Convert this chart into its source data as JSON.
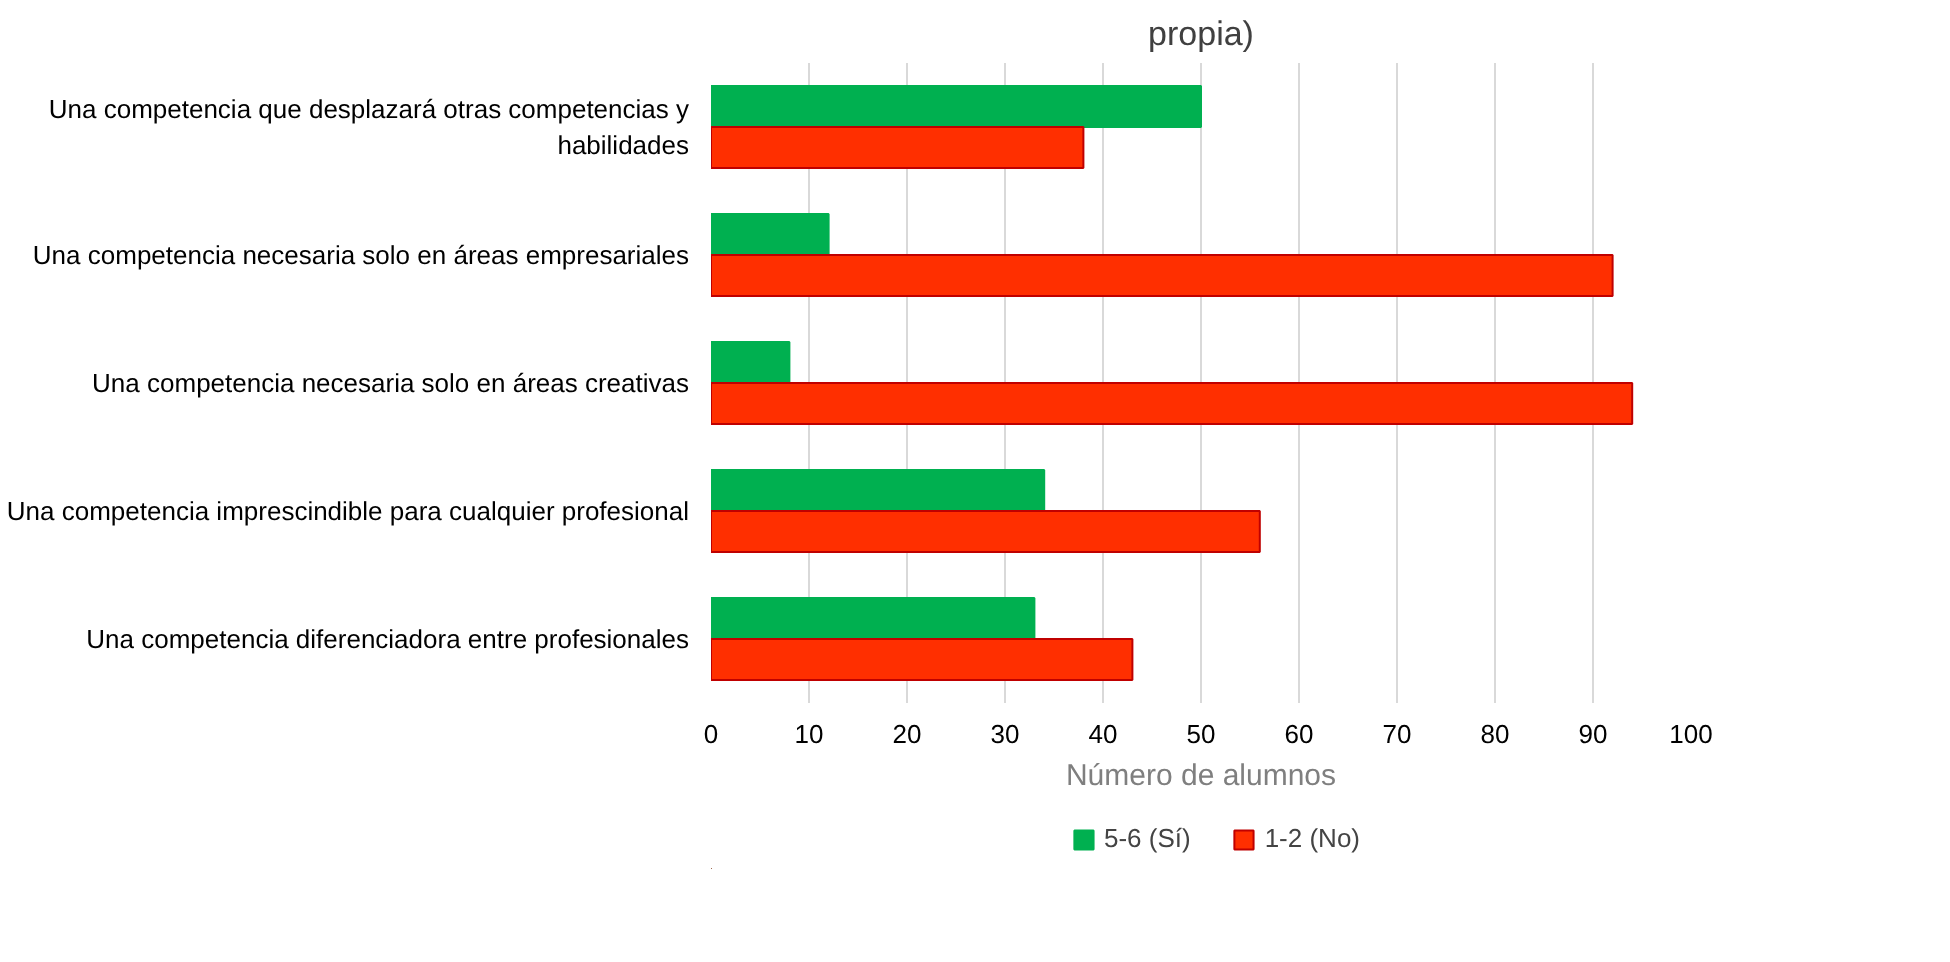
{
  "chart_data": {
    "type": "bar",
    "orientation": "horizontal",
    "title": "propia)",
    "categories": [
      "Una competencia que desplazará otras competencias y habilidades",
      "Una competencia necesaria solo en áreas empresariales",
      "Una competencia necesaria solo en áreas creativas",
      "Una competencia imprescindible para cualquier profesional",
      "Una competencia diferenciadora entre profesionales"
    ],
    "series": [
      {
        "name": "5-6 (Sí)",
        "color": "#00b050",
        "values": [
          50,
          12,
          8,
          34,
          33
        ]
      },
      {
        "name": "1-2 (No)",
        "color": "#ff2f00",
        "values": [
          38,
          92,
          94,
          56,
          43
        ]
      }
    ],
    "xlabel": "Número de alumnos",
    "xlim": [
      0,
      100
    ],
    "xticks": [
      0,
      10,
      20,
      30,
      40,
      50,
      60,
      70,
      80,
      90,
      100
    ],
    "grid": "x",
    "legend": "bottom"
  }
}
